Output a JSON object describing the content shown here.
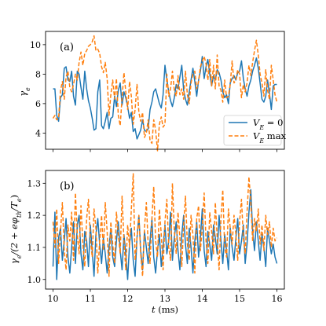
{
  "chart_data": [
    {
      "type": "line",
      "panel_label": "(a)",
      "title": "",
      "xlabel": "",
      "ylabel": "γe",
      "xlim": [
        9.8,
        16.2
      ],
      "ylim": [
        2.9,
        10.9
      ],
      "xticks": [
        10,
        11,
        12,
        13,
        14,
        15,
        16
      ],
      "yticks": [
        4,
        6,
        8,
        10
      ],
      "ytick_labels": [
        "4",
        "6",
        "8",
        "10"
      ],
      "grid": false,
      "legend_position": "lower-right",
      "series": [
        {
          "name": "VE = 0",
          "name_main": "V",
          "name_sub": "E",
          "name_tail": " = 0",
          "color": "#1f77b4",
          "style": "solid",
          "x": [
            10.0,
            10.05,
            10.1,
            10.15,
            10.2,
            10.25,
            10.3,
            10.35,
            10.4,
            10.45,
            10.5,
            10.55,
            10.6,
            10.65,
            10.7,
            10.75,
            10.8,
            10.85,
            10.9,
            10.95,
            11.0,
            11.05,
            11.1,
            11.15,
            11.2,
            11.25,
            11.3,
            11.35,
            11.4,
            11.45,
            11.5,
            11.55,
            11.6,
            11.65,
            11.7,
            11.75,
            11.8,
            11.85,
            11.9,
            11.95,
            12.0,
            12.05,
            12.1,
            12.15,
            12.2,
            12.25,
            12.3,
            12.35,
            12.4,
            12.45,
            12.5,
            12.55,
            12.6,
            12.65,
            12.7,
            12.75,
            12.8,
            12.85,
            12.9,
            12.95,
            13.0,
            13.05,
            13.1,
            13.15,
            13.2,
            13.25,
            13.3,
            13.35,
            13.4,
            13.45,
            13.5,
            13.55,
            13.6,
            13.65,
            13.7,
            13.75,
            13.8,
            13.85,
            13.9,
            13.95,
            14.0,
            14.05,
            14.1,
            14.15,
            14.2,
            14.25,
            14.3,
            14.35,
            14.4,
            14.45,
            14.5,
            14.55,
            14.6,
            14.65,
            14.7,
            14.75,
            14.8,
            14.85,
            14.9,
            14.95,
            15.0,
            15.05,
            15.1,
            15.15,
            15.2,
            15.25,
            15.3,
            15.35,
            15.4,
            15.45,
            15.5,
            15.55,
            15.6,
            15.65,
            15.7,
            15.75,
            15.8,
            15.85,
            15.9,
            15.95,
            16.0
          ],
          "y": [
            7.0,
            7.0,
            5.2,
            4.8,
            6.4,
            6.6,
            8.4,
            8.5,
            7.6,
            7.5,
            8.2,
            6.5,
            5.9,
            8.2,
            8.0,
            7.1,
            6.3,
            8.2,
            7.0,
            6.2,
            5.7,
            5.0,
            4.2,
            4.3,
            6.8,
            7.6,
            4.5,
            4.3,
            4.8,
            5.4,
            4.3,
            5.0,
            5.1,
            6.5,
            5.8,
            6.9,
            7.4,
            5.9,
            6.8,
            6.4,
            5.8,
            5.0,
            5.4,
            4.1,
            4.3,
            3.6,
            3.9,
            4.2,
            4.9,
            4.2,
            4.1,
            4.3,
            5.6,
            6.1,
            6.8,
            7.0,
            6.5,
            6.0,
            5.7,
            6.6,
            8.6,
            7.6,
            6.8,
            6.2,
            5.8,
            6.4,
            7.3,
            7.0,
            7.8,
            8.6,
            6.9,
            6.3,
            5.9,
            6.8,
            7.6,
            8.4,
            7.5,
            6.5,
            7.6,
            8.2,
            9.2,
            7.7,
            8.5,
            9.0,
            8.0,
            7.2,
            7.9,
            7.6,
            8.3,
            8.1,
            7.6,
            6.8,
            6.4,
            6.6,
            6.0,
            7.4,
            7.7,
            7.9,
            7.6,
            8.1,
            8.2,
            8.9,
            7.7,
            7.0,
            6.5,
            7.2,
            7.6,
            8.2,
            8.6,
            9.1,
            8.4,
            7.4,
            6.3,
            6.1,
            6.5,
            7.6,
            6.7,
            5.6,
            7.2,
            7.3,
            7.3
          ]
        },
        {
          "name": "VE max",
          "name_main": "V",
          "name_sub": "E",
          "name_tail": " max",
          "color": "#ff7f0e",
          "style": "dashed",
          "x": [
            10.0,
            10.05,
            10.1,
            10.15,
            10.2,
            10.25,
            10.3,
            10.35,
            10.4,
            10.45,
            10.5,
            10.55,
            10.6,
            10.65,
            10.7,
            10.75,
            10.8,
            10.85,
            10.9,
            10.95,
            11.0,
            11.05,
            11.1,
            11.15,
            11.2,
            11.25,
            11.3,
            11.35,
            11.4,
            11.45,
            11.5,
            11.55,
            11.6,
            11.65,
            11.7,
            11.75,
            11.8,
            11.85,
            11.9,
            11.95,
            12.0,
            12.05,
            12.1,
            12.15,
            12.2,
            12.25,
            12.3,
            12.35,
            12.4,
            12.45,
            12.5,
            12.55,
            12.6,
            12.65,
            12.7,
            12.75,
            12.8,
            12.85,
            12.9,
            12.95,
            13.0,
            13.05,
            13.1,
            13.15,
            13.2,
            13.25,
            13.3,
            13.35,
            13.4,
            13.45,
            13.5,
            13.55,
            13.6,
            13.65,
            13.7,
            13.75,
            13.8,
            13.85,
            13.9,
            13.95,
            14.0,
            14.05,
            14.1,
            14.15,
            14.2,
            14.25,
            14.3,
            14.35,
            14.4,
            14.45,
            14.5,
            14.55,
            14.6,
            14.65,
            14.7,
            14.75,
            14.8,
            14.85,
            14.9,
            14.95,
            15.0,
            15.05,
            15.1,
            15.15,
            15.2,
            15.25,
            15.3,
            15.35,
            15.4,
            15.45,
            15.5,
            15.55,
            15.6,
            15.65,
            15.7,
            15.75,
            15.8,
            15.85,
            15.9,
            15.95,
            16.0
          ],
          "y": [
            5.0,
            5.2,
            4.9,
            5.0,
            6.9,
            7.5,
            6.3,
            7.8,
            8.2,
            7.1,
            6.8,
            7.3,
            8.0,
            7.6,
            8.8,
            9.5,
            8.6,
            9.4,
            9.6,
            9.9,
            10.0,
            10.2,
            10.6,
            9.6,
            9.7,
            9.4,
            8.5,
            8.1,
            8.8,
            7.7,
            5.2,
            6.6,
            7.6,
            6.3,
            7.7,
            5.2,
            4.5,
            6.4,
            8.1,
            6.8,
            5.6,
            7.5,
            6.5,
            4.6,
            5.6,
            7.3,
            5.4,
            4.8,
            5.4,
            3.7,
            4.0,
            4.9,
            3.5,
            3.3,
            4.9,
            4.2,
            2.8,
            4.6,
            5.1,
            4.4,
            4.6,
            8.0,
            6.5,
            7.0,
            8.2,
            6.9,
            6.5,
            7.9,
            6.6,
            7.0,
            6.3,
            8.2,
            6.6,
            6.0,
            7.4,
            8.0,
            8.2,
            7.0,
            7.5,
            8.5,
            8.9,
            9.2,
            8.7,
            7.6,
            9.0,
            7.2,
            8.6,
            7.0,
            9.3,
            7.2,
            6.9,
            6.1,
            7.6,
            6.4,
            6.5,
            7.3,
            8.9,
            7.4,
            7.6,
            8.3,
            8.0,
            6.4,
            7.3,
            6.8,
            7.4,
            8.6,
            7.9,
            8.8,
            9.6,
            10.3,
            9.3,
            8.0,
            7.4,
            6.5,
            8.3,
            6.9,
            6.3,
            8.6,
            7.6,
            6.6,
            6.1
          ]
        }
      ]
    },
    {
      "type": "line",
      "panel_label": "(b)",
      "title": "",
      "xlabel": "t (ms)",
      "xlabel_main": "t",
      "xlabel_tail": " (ms)",
      "ylabel": "γe/(2 + eφth/Te)",
      "xlim": [
        9.8,
        16.2
      ],
      "ylim": [
        0.97,
        1.34
      ],
      "xticks": [
        10,
        11,
        12,
        13,
        14,
        15,
        16
      ],
      "yticks": [
        1.0,
        1.1,
        1.2,
        1.3
      ],
      "ytick_labels": [
        "1.0",
        "1.1",
        "1.2",
        "1.3"
      ],
      "grid": false,
      "series": [
        {
          "name": "VE = 0",
          "color": "#1f77b4",
          "style": "solid",
          "x": [
            10.0,
            10.05,
            10.1,
            10.15,
            10.2,
            10.25,
            10.3,
            10.35,
            10.4,
            10.45,
            10.5,
            10.55,
            10.6,
            10.65,
            10.7,
            10.75,
            10.8,
            10.85,
            10.9,
            10.95,
            11.0,
            11.05,
            11.1,
            11.15,
            11.2,
            11.25,
            11.3,
            11.35,
            11.4,
            11.45,
            11.5,
            11.55,
            11.6,
            11.65,
            11.7,
            11.75,
            11.8,
            11.85,
            11.9,
            11.95,
            12.0,
            12.05,
            12.1,
            12.15,
            12.2,
            12.25,
            12.3,
            12.35,
            12.4,
            12.45,
            12.5,
            12.55,
            12.6,
            12.65,
            12.7,
            12.75,
            12.8,
            12.85,
            12.9,
            12.95,
            13.0,
            13.05,
            13.1,
            13.15,
            13.2,
            13.25,
            13.3,
            13.35,
            13.4,
            13.45,
            13.5,
            13.55,
            13.6,
            13.65,
            13.7,
            13.75,
            13.8,
            13.85,
            13.9,
            13.95,
            14.0,
            14.05,
            14.1,
            14.15,
            14.2,
            14.25,
            14.3,
            14.35,
            14.4,
            14.45,
            14.5,
            14.55,
            14.6,
            14.65,
            14.7,
            14.75,
            14.8,
            14.85,
            14.9,
            14.95,
            15.0,
            15.05,
            15.1,
            15.15,
            15.2,
            15.25,
            15.3,
            15.35,
            15.4,
            15.45,
            15.5,
            15.55,
            15.6,
            15.65,
            15.7,
            15.75,
            15.8,
            15.85,
            15.9,
            15.95,
            16.0
          ],
          "y": [
            1.04,
            1.21,
            1.0,
            1.13,
            1.16,
            1.06,
            1.12,
            1.19,
            1.07,
            1.02,
            1.1,
            1.18,
            1.05,
            1.17,
            1.2,
            1.08,
            1.03,
            1.15,
            1.12,
            1.04,
            1.17,
            1.09,
            1.01,
            1.14,
            1.19,
            1.11,
            1.05,
            1.13,
            1.08,
            1.02,
            1.1,
            1.16,
            1.07,
            1.04,
            1.12,
            1.18,
            1.09,
            1.03,
            1.14,
            1.08,
            1.0,
            1.11,
            1.16,
            1.06,
            1.01,
            1.13,
            1.2,
            1.09,
            1.03,
            1.15,
            1.1,
            1.05,
            1.12,
            1.19,
            1.07,
            1.02,
            1.09,
            1.14,
            1.04,
            1.1,
            1.17,
            1.08,
            1.12,
            1.21,
            1.06,
            1.13,
            1.18,
            1.09,
            1.03,
            1.14,
            1.2,
            1.11,
            1.05,
            1.16,
            1.1,
            1.02,
            1.12,
            1.18,
            1.07,
            1.13,
            1.22,
            1.09,
            1.04,
            1.15,
            1.11,
            1.06,
            1.17,
            1.13,
            1.08,
            1.2,
            1.12,
            1.05,
            1.14,
            1.09,
            1.03,
            1.16,
            1.1,
            1.06,
            1.13,
            1.19,
            1.08,
            1.12,
            1.17,
            1.05,
            1.11,
            1.21,
            1.28,
            1.15,
            1.09,
            1.18,
            1.12,
            1.06,
            1.14,
            1.1,
            1.04,
            1.16,
            1.12,
            1.08,
            1.11,
            1.07,
            1.05
          ]
        },
        {
          "name": "VE max",
          "color": "#ff7f0e",
          "style": "dashed",
          "x": [
            10.0,
            10.05,
            10.1,
            10.15,
            10.2,
            10.25,
            10.3,
            10.35,
            10.4,
            10.45,
            10.5,
            10.55,
            10.6,
            10.65,
            10.7,
            10.75,
            10.8,
            10.85,
            10.9,
            10.95,
            11.0,
            11.05,
            11.1,
            11.15,
            11.2,
            11.25,
            11.3,
            11.35,
            11.4,
            11.45,
            11.5,
            11.55,
            11.6,
            11.65,
            11.7,
            11.75,
            11.8,
            11.85,
            11.9,
            11.95,
            12.0,
            12.05,
            12.1,
            12.15,
            12.2,
            12.25,
            12.3,
            12.35,
            12.4,
            12.45,
            12.5,
            12.55,
            12.6,
            12.65,
            12.7,
            12.75,
            12.8,
            12.85,
            12.9,
            12.95,
            13.0,
            13.05,
            13.1,
            13.15,
            13.2,
            13.25,
            13.3,
            13.35,
            13.4,
            13.45,
            13.5,
            13.55,
            13.6,
            13.65,
            13.7,
            13.75,
            13.8,
            13.85,
            13.9,
            13.95,
            14.0,
            14.05,
            14.1,
            14.15,
            14.2,
            14.25,
            14.3,
            14.35,
            14.4,
            14.45,
            14.5,
            14.55,
            14.6,
            14.65,
            14.7,
            14.75,
            14.8,
            14.85,
            14.9,
            14.95,
            15.0,
            15.05,
            15.1,
            15.15,
            15.2,
            15.25,
            15.3,
            15.35,
            15.4,
            15.45,
            15.5,
            15.55,
            15.6,
            15.65,
            15.7,
            15.75,
            15.8,
            15.85,
            15.9,
            15.95,
            16.0
          ],
          "y": [
            1.18,
            1.1,
            1.22,
            1.05,
            1.15,
            1.24,
            1.09,
            1.03,
            1.17,
            1.12,
            1.21,
            1.06,
            1.27,
            1.14,
            1.08,
            1.23,
            1.11,
            1.04,
            1.19,
            1.25,
            1.13,
            1.07,
            1.22,
            1.16,
            1.02,
            1.12,
            1.2,
            1.09,
            1.24,
            1.15,
            1.01,
            1.18,
            1.11,
            1.05,
            1.21,
            1.14,
            1.08,
            1.26,
            1.12,
            1.03,
            1.17,
            1.1,
            1.22,
            1.33,
            1.06,
            1.13,
            1.2,
            1.08,
            1.01,
            1.16,
            1.24,
            1.11,
            1.05,
            1.19,
            1.29,
            1.12,
            1.07,
            1.22,
            1.14,
            1.03,
            1.18,
            1.25,
            1.1,
            1.06,
            1.3,
            1.15,
            1.08,
            1.21,
            1.13,
            1.04,
            1.17,
            1.26,
            1.11,
            1.06,
            1.2,
            1.14,
            1.02,
            1.19,
            1.23,
            1.09,
            1.16,
            1.27,
            1.12,
            1.05,
            1.21,
            1.15,
            1.08,
            1.24,
            1.13,
            1.03,
            1.19,
            1.28,
            1.1,
            1.07,
            1.22,
            1.16,
            1.11,
            1.2,
            1.14,
            1.06,
            1.18,
            1.25,
            1.13,
            1.08,
            1.21,
            1.32,
            1.24,
            1.12,
            1.19,
            1.15,
            1.22,
            1.11,
            1.17,
            1.09,
            1.2,
            1.14,
            1.18,
            1.1,
            1.16,
            1.12,
            1.13
          ]
        }
      ]
    }
  ]
}
